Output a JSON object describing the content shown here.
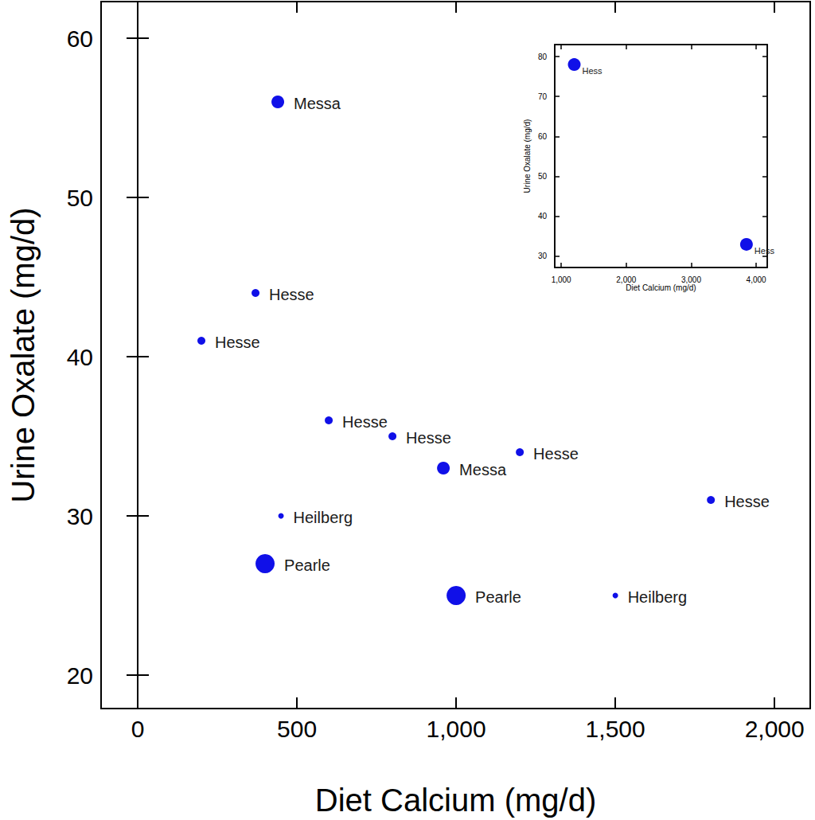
{
  "chart_data": [
    {
      "type": "scatter",
      "x_label": "Diet Calcium (mg/d)",
      "y_label": "Urine Oxalate (mg/d)",
      "x": [
        440,
        370,
        200,
        600,
        800,
        960,
        1200,
        1800,
        450,
        400,
        1000,
        1500
      ],
      "values": [
        56,
        44,
        41,
        36,
        35,
        33,
        34,
        31,
        30,
        27,
        25,
        25
      ],
      "labels": [
        "Messa",
        "Hesse",
        "Hesse",
        "Hesse",
        "Hesse",
        "Messa",
        "Hesse",
        "Hesse",
        "Heilberg",
        "Pearle",
        "Pearle",
        "Heilberg"
      ],
      "sizes": [
        16,
        10,
        10,
        10,
        10,
        16,
        10,
        10,
        7,
        24,
        24,
        7
      ],
      "color": "#1010e8",
      "marker": "circle",
      "xlim": [
        -115,
        2112
      ],
      "xticks": [
        0,
        500,
        {
          "value": 1000,
          "label": "1,000"
        },
        {
          "value": 1500,
          "label": "1,500"
        },
        {
          "value": 2000,
          "label": "2,000"
        }
      ],
      "ylim": [
        17.9,
        62.3
      ],
      "yticks": [
        20,
        30,
        40,
        50,
        60
      ],
      "grid": false
    },
    {
      "type": "scatter",
      "x_label": "Diet Calcium (mg/d)",
      "y_label": "Urine Oxalate (mg/d)",
      "x": [
        1200,
        3850
      ],
      "values": [
        78,
        33
      ],
      "labels": [
        "Hess",
        "Hess"
      ],
      "sizes": [
        16,
        16
      ],
      "color": "#1010e8",
      "marker": "circle",
      "xlim": [
        900,
        4170
      ],
      "xticks": [
        {
          "value": 1000,
          "label": "1,000"
        },
        {
          "value": 2000,
          "label": "2,000"
        },
        {
          "value": 3000,
          "label": "3,000"
        },
        {
          "value": 4000,
          "label": "4,000"
        }
      ],
      "ylim": [
        27.2,
        83
      ],
      "yticks": [
        30,
        40,
        50,
        60,
        70,
        80
      ],
      "grid": false
    }
  ]
}
